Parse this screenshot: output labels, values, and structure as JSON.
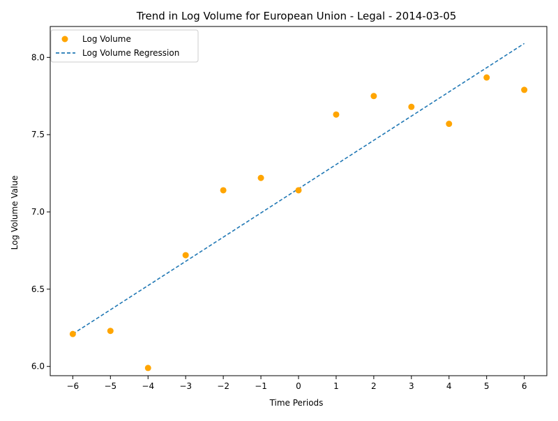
{
  "chart_data": {
    "type": "scatter",
    "title": "Trend in Log Volume for European Union - Legal - 2014-03-05",
    "xlabel": "Time Periods",
    "ylabel": "Log Volume Value",
    "xlim": [
      -6.6,
      6.6
    ],
    "ylim": [
      5.94,
      8.2
    ],
    "xticks": [
      -6,
      -5,
      -4,
      -3,
      -2,
      -1,
      0,
      1,
      2,
      3,
      4,
      5,
      6
    ],
    "xtick_labels": [
      "−6",
      "−5",
      "−4",
      "−3",
      "−2",
      "−1",
      "0",
      "1",
      "2",
      "3",
      "4",
      "5",
      "6"
    ],
    "yticks": [
      6.0,
      6.5,
      7.0,
      7.5,
      8.0
    ],
    "ytick_labels": [
      "6.0",
      "6.5",
      "7.0",
      "7.5",
      "8.0"
    ],
    "grid": false,
    "legend_position": "top-left",
    "series": [
      {
        "name": "Log Volume",
        "kind": "scatter",
        "color": "#FFA500",
        "x": [
          -6,
          -5,
          -4,
          -3,
          -2,
          -1,
          0,
          1,
          2,
          3,
          4,
          5,
          6
        ],
        "y": [
          6.21,
          6.23,
          5.99,
          6.72,
          7.14,
          7.22,
          7.14,
          7.63,
          7.75,
          7.68,
          7.57,
          7.87,
          7.79
        ]
      },
      {
        "name": "Log Volume Regression",
        "kind": "line",
        "style": "dashed",
        "color": "#1F77B4",
        "x": [
          -6,
          6
        ],
        "y": [
          6.21,
          8.09
        ]
      }
    ]
  }
}
